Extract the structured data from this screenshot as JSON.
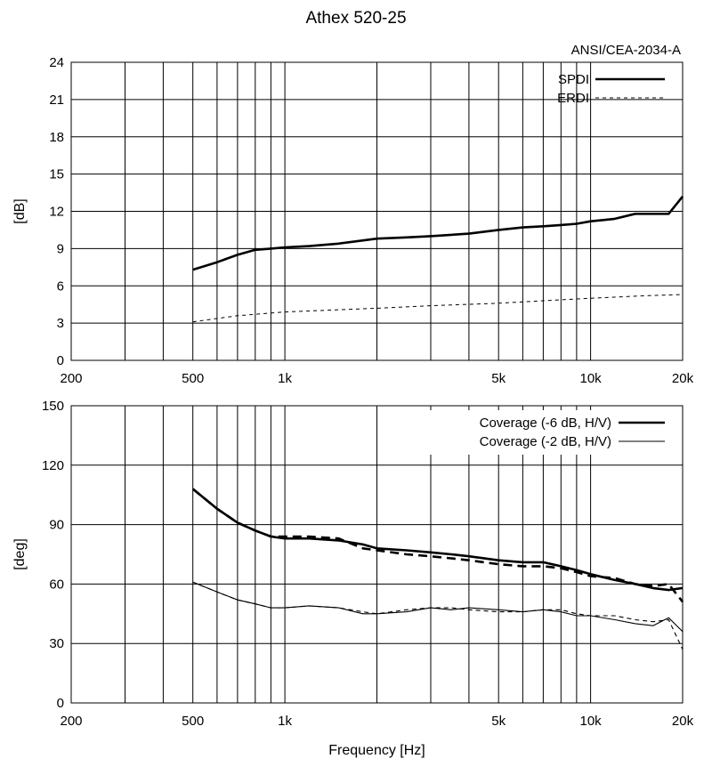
{
  "title": "Athex 520-25",
  "chart_data": [
    {
      "type": "line",
      "name": "directivity-index",
      "standard": "ANSI/CEA-2034-A",
      "ylabel": "[dB]",
      "xlabel": "",
      "xscale": "log",
      "xlim": [
        200,
        20000
      ],
      "ylim": [
        0,
        24
      ],
      "xticks": [
        200,
        500,
        1000,
        5000,
        10000,
        20000
      ],
      "xtick_labels": [
        "200",
        "500",
        "1k",
        "5k",
        "10k",
        "20k"
      ],
      "yticks": [
        0,
        3,
        6,
        9,
        12,
        15,
        18,
        21,
        24
      ],
      "ytick_labels": [
        "0",
        "3",
        "6",
        "9",
        "12",
        "15",
        "18",
        "21",
        "24"
      ],
      "grid": true,
      "legend": "top-right",
      "series": [
        {
          "name": "SPDI",
          "style": "thick-solid",
          "x": [
            500,
            600,
            700,
            800,
            900,
            1000,
            1200,
            1500,
            2000,
            2500,
            3000,
            4000,
            5000,
            6000,
            7000,
            8000,
            9000,
            10000,
            11000,
            12000,
            14000,
            16000,
            18000,
            20000
          ],
          "y": [
            7.3,
            7.9,
            8.5,
            8.9,
            9.0,
            9.1,
            9.2,
            9.4,
            9.8,
            9.9,
            10.0,
            10.2,
            10.5,
            10.7,
            10.8,
            10.9,
            11.0,
            11.2,
            11.3,
            11.4,
            11.8,
            11.8,
            11.8,
            13.2
          ]
        },
        {
          "name": "ERDI",
          "style": "dashed",
          "x": [
            500,
            700,
            1000,
            2000,
            3000,
            5000,
            7000,
            10000,
            15000,
            20000
          ],
          "y": [
            3.1,
            3.6,
            3.9,
            4.2,
            4.4,
            4.6,
            4.8,
            5.0,
            5.2,
            5.3
          ]
        }
      ]
    },
    {
      "type": "line",
      "name": "coverage",
      "xlabel": "Frequency [Hz]",
      "ylabel": "[deg]",
      "xscale": "log",
      "xlim": [
        200,
        20000
      ],
      "ylim": [
        0,
        150
      ],
      "xticks": [
        200,
        500,
        1000,
        5000,
        10000,
        20000
      ],
      "xtick_labels": [
        "200",
        "500",
        "1k",
        "5k",
        "10k",
        "20k"
      ],
      "yticks": [
        0,
        30,
        60,
        90,
        120,
        150
      ],
      "ytick_labels": [
        "0",
        "30",
        "60",
        "90",
        "120",
        "150"
      ],
      "grid": true,
      "legend": "top-right",
      "legend_entries": [
        {
          "label": "Coverage (-6 dB, H/V)",
          "style": "thick-solid"
        },
        {
          "label": "Coverage (-2 dB, H/V)",
          "style": "thin-solid"
        }
      ],
      "series": [
        {
          "name": "Coverage (-6 dB, H)",
          "style": "thick-solid",
          "x": [
            500,
            600,
            700,
            800,
            900,
            1000,
            1200,
            1500,
            1800,
            2000,
            2500,
            3000,
            3500,
            4000,
            5000,
            6000,
            7000,
            8000,
            9000,
            10000,
            12000,
            14000,
            16000,
            18000,
            20000
          ],
          "y": [
            108,
            98,
            91,
            87,
            84,
            83,
            83,
            82,
            80,
            78,
            77,
            76,
            75,
            74,
            72,
            71,
            71,
            69,
            67,
            65,
            62,
            60,
            58,
            57,
            58
          ]
        },
        {
          "name": "Coverage (-6 dB, V)",
          "style": "thick-dashed",
          "x": [
            500,
            600,
            700,
            800,
            900,
            1000,
            1200,
            1500,
            1800,
            2000,
            2500,
            3000,
            3500,
            4000,
            5000,
            6000,
            7000,
            8000,
            9000,
            10000,
            12000,
            14000,
            16000,
            18000,
            20000
          ],
          "y": [
            108,
            98,
            91,
            87,
            84,
            84,
            84,
            83,
            78,
            77,
            75,
            74,
            73,
            72,
            70,
            69,
            69,
            68,
            66,
            64,
            63,
            60,
            59,
            60,
            51
          ]
        },
        {
          "name": "Coverage (-2 dB, H)",
          "style": "thin-solid",
          "x": [
            500,
            600,
            700,
            800,
            900,
            1000,
            1200,
            1500,
            1800,
            2000,
            2500,
            3000,
            3500,
            4000,
            5000,
            6000,
            7000,
            8000,
            9000,
            10000,
            12000,
            14000,
            16000,
            18000,
            20000
          ],
          "y": [
            61,
            56,
            52,
            50,
            48,
            48,
            49,
            48,
            45,
            45,
            46,
            48,
            47,
            48,
            47,
            46,
            47,
            46,
            44,
            44,
            42,
            40,
            39,
            43,
            36
          ]
        },
        {
          "name": "Coverage (-2 dB, V)",
          "style": "thin-dashed",
          "x": [
            500,
            600,
            700,
            800,
            900,
            1000,
            1200,
            1500,
            1800,
            2000,
            2500,
            3000,
            3500,
            4000,
            5000,
            6000,
            7000,
            8000,
            9000,
            10000,
            12000,
            14000,
            16000,
            18000,
            20000
          ],
          "y": [
            61,
            56,
            52,
            50,
            48,
            48,
            49,
            48,
            46,
            45,
            47,
            48,
            48,
            47,
            46,
            46,
            47,
            47,
            45,
            44,
            44,
            42,
            41,
            42,
            27
          ]
        }
      ]
    }
  ]
}
